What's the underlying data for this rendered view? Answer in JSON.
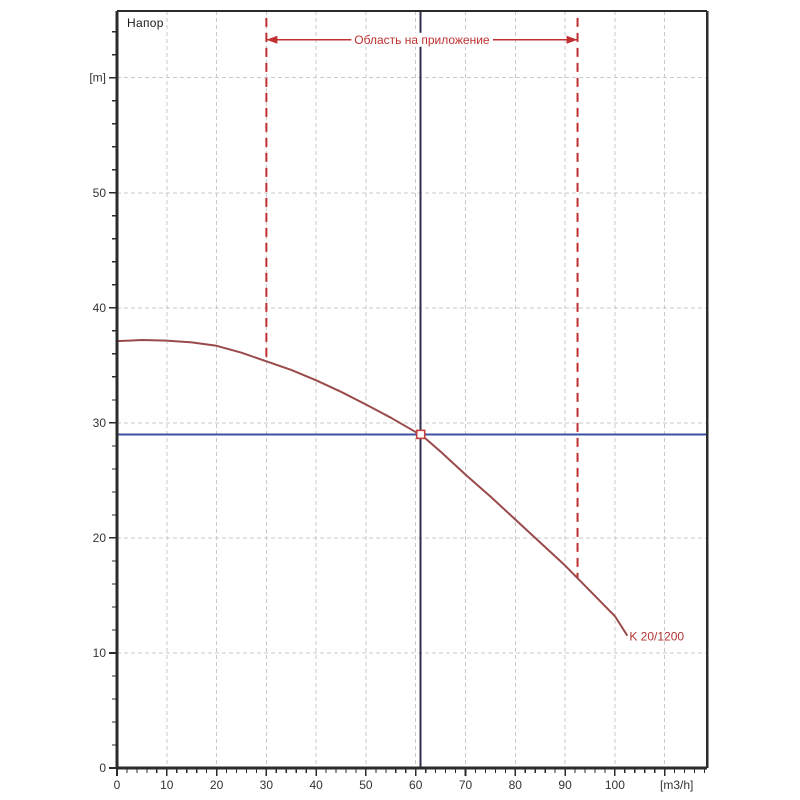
{
  "chart_data": {
    "type": "line",
    "title": "Напор",
    "ylabel": "Напор",
    "xlabel": "",
    "x_unit_label": "[m3/h]",
    "y_unit_label": "[m]",
    "xlim": [
      0,
      118.5
    ],
    "ylim": [
      0,
      65.8
    ],
    "grid": "dashed-major",
    "x_ticks": {
      "major": [
        0,
        10,
        20,
        30,
        40,
        50,
        60,
        70,
        80,
        90,
        100,
        110
      ],
      "labels": [
        "0",
        "10",
        "20",
        "30",
        "40",
        "50",
        "60",
        "70",
        "80",
        "90",
        "100",
        "[m3/h]"
      ],
      "minor_step": 2
    },
    "y_ticks": {
      "major": [
        0,
        10,
        20,
        30,
        40,
        50,
        60
      ],
      "labels": [
        "0",
        "10",
        "20",
        "30",
        "40",
        "50",
        "[m]"
      ],
      "minor_step": 2
    },
    "series": [
      {
        "name": "K 20/1200",
        "color": "#9a4a4a",
        "points": [
          [
            0,
            37.1
          ],
          [
            5,
            37.2
          ],
          [
            10,
            37.15
          ],
          [
            15,
            37.0
          ],
          [
            20,
            36.7
          ],
          [
            25,
            36.1
          ],
          [
            30,
            35.35
          ],
          [
            35,
            34.6
          ],
          [
            40,
            33.7
          ],
          [
            45,
            32.7
          ],
          [
            50,
            31.6
          ],
          [
            55,
            30.45
          ],
          [
            60,
            29.2
          ],
          [
            61,
            29.0
          ],
          [
            65,
            27.5
          ],
          [
            70,
            25.5
          ],
          [
            75,
            23.6
          ],
          [
            80,
            21.6
          ],
          [
            85,
            19.6
          ],
          [
            90,
            17.6
          ],
          [
            95,
            15.4
          ],
          [
            100,
            13.2
          ],
          [
            102.5,
            11.5
          ]
        ]
      }
    ],
    "curve_label": {
      "text": "K 20/1200",
      "x": 102.9,
      "y": 11.1,
      "color": "#b03434"
    },
    "head_line": {
      "value": 29,
      "color": "#3c50a0"
    },
    "flow_line": {
      "value": 61,
      "color": "#2e2e4e"
    },
    "operating_point": {
      "flow": 61,
      "head": 29,
      "marker": "square",
      "fill": "#ffffff",
      "stroke": "#c04040"
    },
    "application_range": {
      "label": "Область на приложение",
      "from": 30,
      "to": 92.5,
      "arrow_y": 63.3,
      "top_y": 65.2,
      "color": "#c03030"
    },
    "style": {
      "grid_color": "#c9c9c9",
      "axis_color": "#2b2b2b",
      "tick_text_color": "#333333",
      "background": "#ffffff"
    }
  }
}
